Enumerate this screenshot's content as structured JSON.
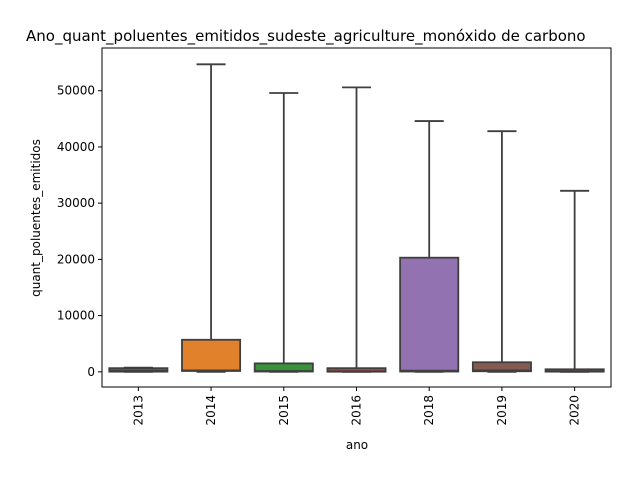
{
  "chart_data": {
    "type": "box",
    "title": "Ano_quant_poluentes_emitidos_sudeste_agriculture_monóxido de carbono",
    "xlabel": "ano",
    "ylabel": "quant_poluentes_emitidos",
    "ylim": [
      -2700,
      57600
    ],
    "yticks": [
      0,
      10000,
      20000,
      30000,
      40000,
      50000
    ],
    "ytick_labels": [
      "0",
      "10000",
      "20000",
      "30000",
      "40000",
      "50000"
    ],
    "categories": [
      "2013",
      "2014",
      "2015",
      "2016",
      "2018",
      "2019",
      "2020"
    ],
    "boxes": [
      {
        "category": "2013",
        "whisker_low": 0,
        "q1": 30,
        "median": 200,
        "q3": 650,
        "whisker_high": 750,
        "color": "#3b6e94"
      },
      {
        "category": "2014",
        "whisker_low": 0,
        "q1": 150,
        "median": 250,
        "q3": 5700,
        "whisker_high": 54700,
        "color": "#e1812c"
      },
      {
        "category": "2015",
        "whisker_low": 0,
        "q1": 50,
        "median": 150,
        "q3": 1500,
        "whisker_high": 49600,
        "color": "#3a923a"
      },
      {
        "category": "2016",
        "whisker_low": 0,
        "q1": 20,
        "median": 100,
        "q3": 650,
        "whisker_high": 50600,
        "color": "#c03d3e"
      },
      {
        "category": "2018",
        "whisker_low": 0,
        "q1": 50,
        "median": 200,
        "q3": 20300,
        "whisker_high": 44600,
        "color": "#9372b2"
      },
      {
        "category": "2019",
        "whisker_low": 0,
        "q1": 100,
        "median": 250,
        "q3": 1700,
        "whisker_high": 42800,
        "color": "#845b53"
      },
      {
        "category": "2020",
        "whisker_low": 0,
        "q1": 30,
        "median": 150,
        "q3": 450,
        "whisker_high": 32200,
        "color": "#d684bd"
      }
    ],
    "grid": false,
    "legend": "none"
  }
}
